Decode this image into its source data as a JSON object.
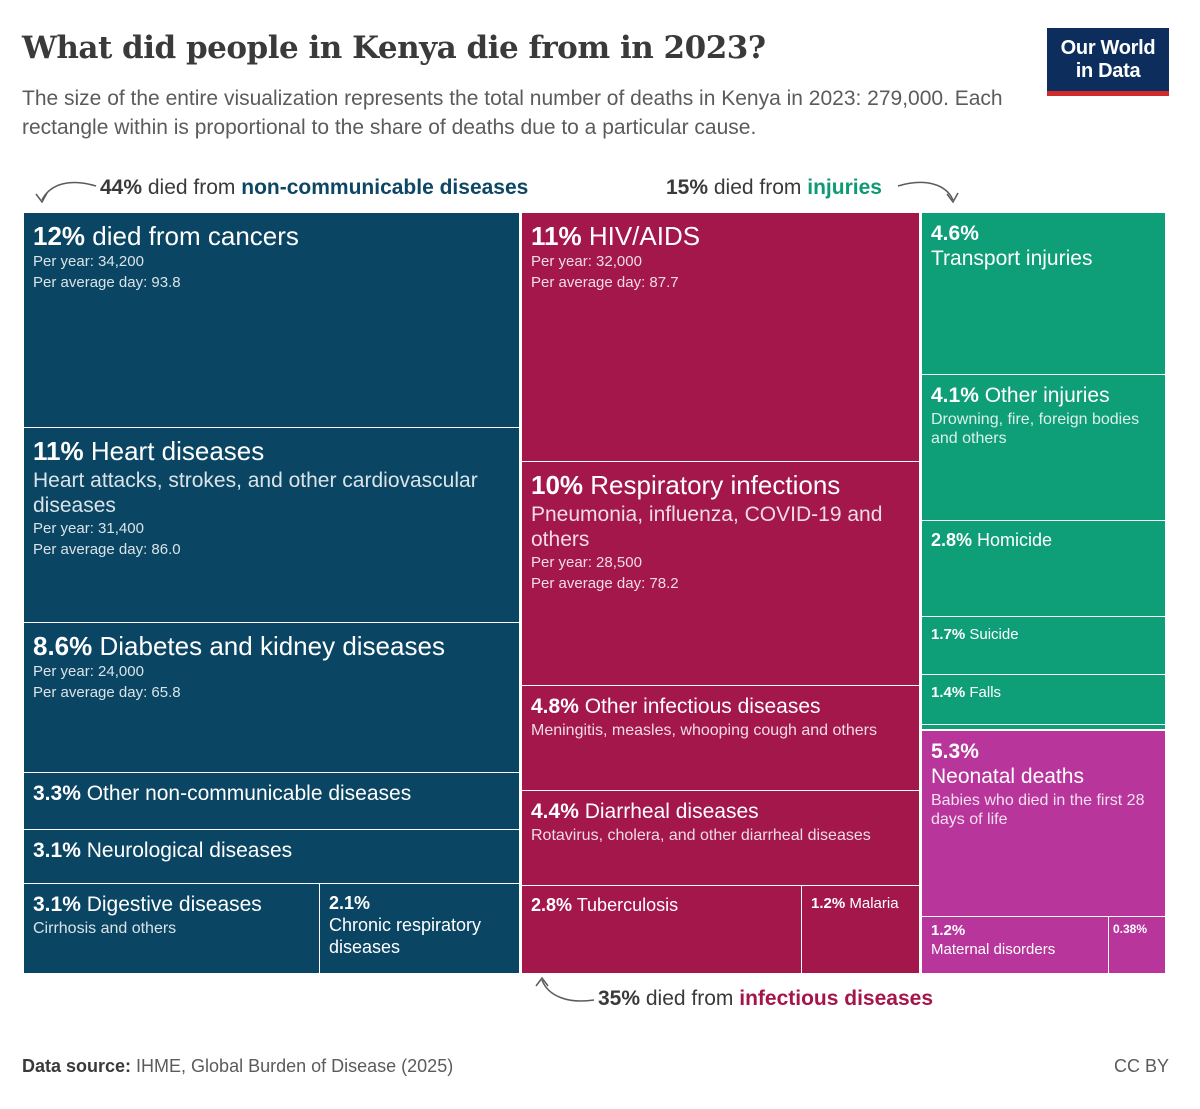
{
  "header": {
    "title": "What did people in Kenya die from in 2023?",
    "subtitle": "The size of the entire visualization represents the total number of deaths in Kenya in 2023: 279,000. Each rectangle within is proportional to the share of deaths due to a particular cause.",
    "logo_line1": "Our World",
    "logo_line2": "in Data"
  },
  "groups": {
    "ncd": {
      "pct": "44%",
      "text": " died from ",
      "name": "non-communicable diseases",
      "color": "#0e4763"
    },
    "injuries": {
      "pct": "15%",
      "text": " died from ",
      "name": "injuries",
      "color": "#0e9a73"
    },
    "infectious": {
      "pct": "35%",
      "text": " died from ",
      "name": "infectious diseases",
      "color": "#a5154a"
    }
  },
  "colors": {
    "ncd": "#0a4563",
    "infectious": "#a3174a",
    "injuries": "#0e9e78",
    "neonatal": "#b8359c",
    "text_dark": "#3a3a3a",
    "text_muted": "#5b5b5b"
  },
  "stat_labels": {
    "per_year": "Per year: ",
    "per_day": "Per average day: "
  },
  "chart_data": {
    "type": "treemap",
    "total_deaths": "279,000",
    "cells": [
      {
        "id": "cancers",
        "group": "non-communicable",
        "share": "12%",
        "label": "died from cancers",
        "description": "",
        "per_year": "34,200",
        "per_day": "93.8"
      },
      {
        "id": "heart",
        "group": "non-communicable",
        "share": "11%",
        "label": "Heart diseases",
        "description": "Heart attacks, strokes, and other cardiovascular diseases",
        "per_year": "31,400",
        "per_day": "86.0"
      },
      {
        "id": "diabetes",
        "group": "non-communicable",
        "share": "8.6%",
        "label": "Diabetes and kidney diseases",
        "description": "",
        "per_year": "24,000",
        "per_day": "65.8"
      },
      {
        "id": "other_ncd",
        "group": "non-communicable",
        "share": "3.3%",
        "label": "Other non-communicable diseases",
        "description": ""
      },
      {
        "id": "neuro",
        "group": "non-communicable",
        "share": "3.1%",
        "label": "Neurological diseases",
        "description": ""
      },
      {
        "id": "digestive",
        "group": "non-communicable",
        "share": "3.1%",
        "label": "Digestive diseases",
        "description": "Cirrhosis and others"
      },
      {
        "id": "chronic_resp",
        "group": "non-communicable",
        "share": "2.1%",
        "label": "Chronic respiratory diseases",
        "description": ""
      },
      {
        "id": "hiv",
        "group": "infectious",
        "share": "11%",
        "label": "HIV/AIDS",
        "description": "",
        "per_year": "32,000",
        "per_day": "87.7"
      },
      {
        "id": "resp_inf",
        "group": "infectious",
        "share": "10%",
        "label": "Respiratory infections",
        "description": "Pneumonia, influenza, COVID-19 and others",
        "per_year": "28,500",
        "per_day": "78.2"
      },
      {
        "id": "other_inf",
        "group": "infectious",
        "share": "4.8%",
        "label": "Other infectious diseases",
        "description": "Meningitis, measles, whooping cough and others"
      },
      {
        "id": "diarrheal",
        "group": "infectious",
        "share": "4.4%",
        "label": "Diarrheal diseases",
        "description": "Rotavirus, cholera, and other diarrheal diseases"
      },
      {
        "id": "tb",
        "group": "infectious",
        "share": "2.8%",
        "label": "Tuberculosis",
        "description": ""
      },
      {
        "id": "malaria",
        "group": "infectious",
        "share": "1.2%",
        "label": "Malaria",
        "description": ""
      },
      {
        "id": "transport",
        "group": "injuries",
        "share": "4.6%",
        "label": "Transport injuries",
        "description": ""
      },
      {
        "id": "other_inj",
        "group": "injuries",
        "share": "4.1%",
        "label": "Other injuries",
        "description": "Drowning, fire, foreign bodies and others"
      },
      {
        "id": "homicide",
        "group": "injuries",
        "share": "2.8%",
        "label": "Homicide",
        "description": ""
      },
      {
        "id": "suicide",
        "group": "injuries",
        "share": "1.7%",
        "label": "Suicide",
        "description": ""
      },
      {
        "id": "falls",
        "group": "injuries",
        "share": "1.4%",
        "label": "Falls",
        "description": ""
      },
      {
        "id": "neonatal",
        "group": "neonatal",
        "share": "5.3%",
        "label": "Neonatal deaths",
        "description": "Babies who died in the first 28 days of life"
      },
      {
        "id": "maternal",
        "group": "neonatal",
        "share": "1.2%",
        "label": "Maternal disorders",
        "description": ""
      },
      {
        "id": "unlabeled_small",
        "group": "neonatal",
        "share": "0.38%",
        "label": "",
        "description": ""
      }
    ]
  },
  "footer": {
    "source_label": "Data source:",
    "source": " IHME, Global Burden of Disease (2025)",
    "license": "CC BY"
  }
}
